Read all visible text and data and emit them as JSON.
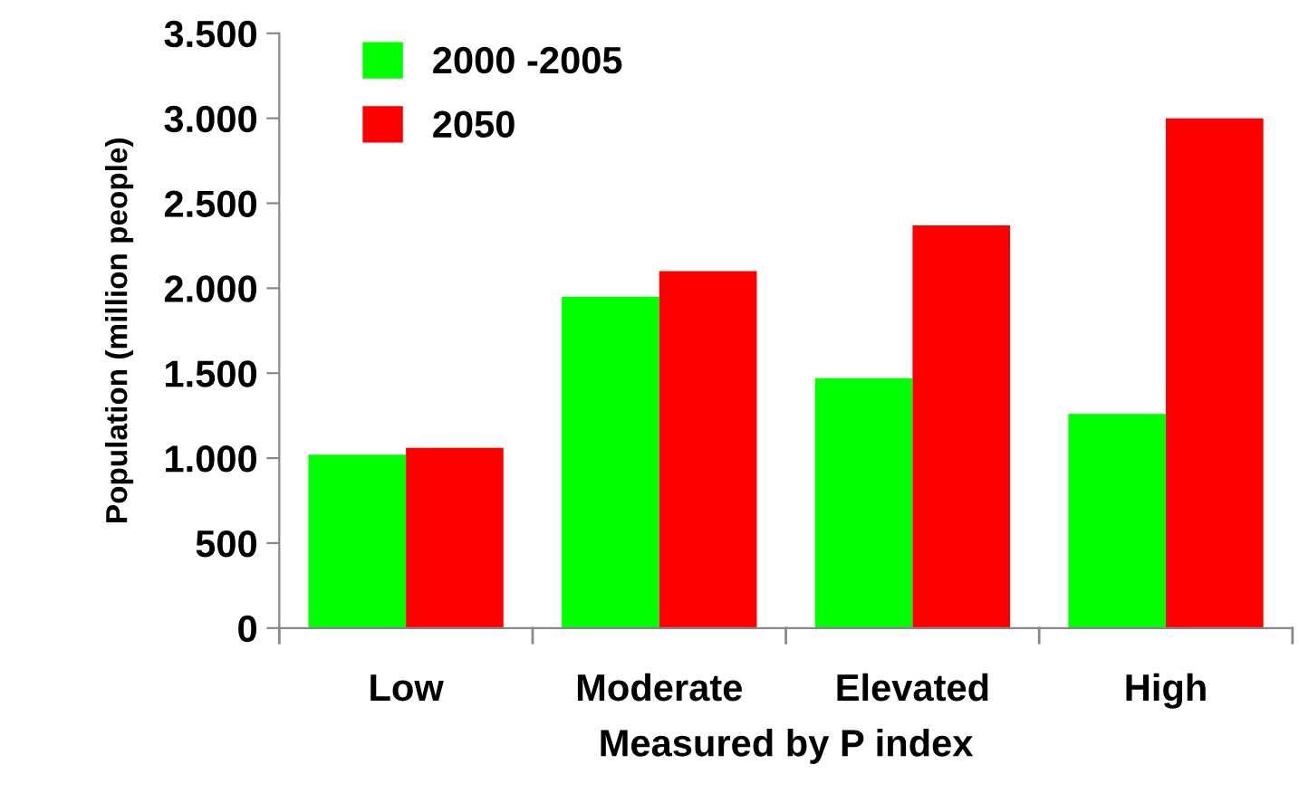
{
  "chart_data": {
    "type": "bar",
    "xlabel": "Measured by P index",
    "ylabel": "Population (million people)",
    "categories": [
      "Low",
      "Moderate",
      "Elevated",
      "High"
    ],
    "series": [
      {
        "name": "2000 -2005",
        "color": "#00ff00",
        "values": [
          1020,
          1950,
          1470,
          1260
        ]
      },
      {
        "name": "2050",
        "color": "#ff0000",
        "values": [
          1060,
          2100,
          2370,
          3000
        ]
      }
    ],
    "ylim": [
      0,
      3500
    ],
    "yticks": [
      0,
      {
        "value": 500,
        "label": "500"
      },
      {
        "value": 1000,
        "label": "1.000"
      },
      {
        "value": 1500,
        "label": "1.500"
      },
      {
        "value": 2000,
        "label": "2.000"
      },
      {
        "value": 2500,
        "label": "2.500"
      },
      {
        "value": 3000,
        "label": "3.000"
      },
      {
        "value": 3500,
        "label": "3.500"
      }
    ],
    "grid": false,
    "legend": "top left"
  }
}
